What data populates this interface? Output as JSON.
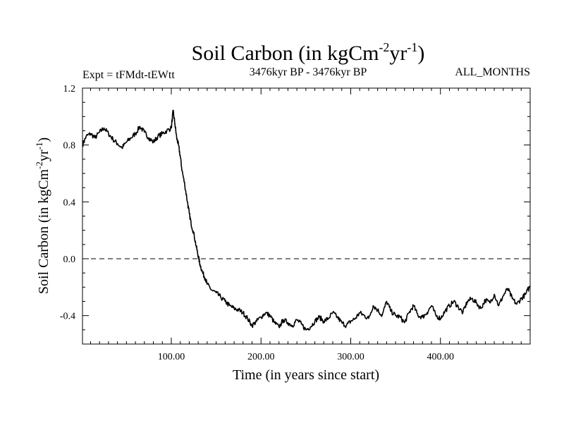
{
  "chart_data": {
    "type": "line",
    "title": {
      "main": "Soil Carbon (in kgCm",
      "sup1": "-2",
      "mid": "yr",
      "sup2": "-1",
      "end": ")"
    },
    "subtitle_left": "Expt = tFMdt-tEWtt",
    "subtitle_center": "3476kyr BP - 3476kyr BP",
    "subtitle_right": "ALL_MONTHS",
    "xlabel": "Time (in years since start)",
    "ylabel": {
      "main": "Soil Carbon (in kgCm",
      "sup1": "-2",
      "mid": "yr",
      "sup2": "-1",
      "end": ")"
    },
    "xlim": [
      1,
      500
    ],
    "ylim": [
      -0.6,
      1.2
    ],
    "x_ticks": [
      100,
      200,
      300,
      400
    ],
    "x_tick_labels": [
      "100.00",
      "200.00",
      "300.00",
      "400.00"
    ],
    "y_ticks": [
      -0.4,
      0.0,
      0.4,
      0.8,
      1.2
    ],
    "y_tick_labels": [
      "-0.4",
      "0.0",
      "0.4",
      "0.8",
      "1.2"
    ],
    "reference_line": {
      "y": 0.0,
      "style": "dashed"
    },
    "series": [
      {
        "name": "Soil Carbon",
        "x": [
          1,
          5,
          10,
          15,
          20,
          25,
          30,
          35,
          40,
          45,
          50,
          55,
          60,
          65,
          70,
          75,
          80,
          85,
          90,
          95,
          100,
          102,
          104,
          106,
          108,
          110,
          112,
          115,
          118,
          120,
          122,
          125,
          128,
          130,
          132,
          135,
          138,
          140,
          145,
          150,
          155,
          160,
          165,
          170,
          175,
          180,
          185,
          190,
          195,
          200,
          205,
          210,
          215,
          220,
          225,
          230,
          235,
          240,
          245,
          250,
          255,
          260,
          265,
          270,
          275,
          280,
          285,
          290,
          295,
          300,
          305,
          310,
          315,
          320,
          325,
          330,
          335,
          340,
          345,
          350,
          355,
          360,
          365,
          370,
          375,
          380,
          385,
          390,
          395,
          400,
          405,
          410,
          415,
          420,
          425,
          430,
          435,
          440,
          445,
          450,
          455,
          460,
          465,
          470,
          475,
          480,
          485,
          490,
          495,
          500
        ],
        "values": [
          0.8,
          0.86,
          0.88,
          0.85,
          0.89,
          0.92,
          0.88,
          0.84,
          0.81,
          0.78,
          0.82,
          0.85,
          0.88,
          0.93,
          0.89,
          0.85,
          0.82,
          0.86,
          0.88,
          0.9,
          0.92,
          1.04,
          0.95,
          0.85,
          0.8,
          0.72,
          0.62,
          0.52,
          0.4,
          0.32,
          0.25,
          0.18,
          0.08,
          0.02,
          -0.04,
          -0.1,
          -0.14,
          -0.18,
          -0.22,
          -0.24,
          -0.27,
          -0.3,
          -0.33,
          -0.35,
          -0.36,
          -0.38,
          -0.42,
          -0.47,
          -0.44,
          -0.41,
          -0.38,
          -0.4,
          -0.45,
          -0.48,
          -0.43,
          -0.45,
          -0.47,
          -0.43,
          -0.46,
          -0.5,
          -0.48,
          -0.44,
          -0.41,
          -0.44,
          -0.42,
          -0.38,
          -0.41,
          -0.45,
          -0.47,
          -0.44,
          -0.42,
          -0.38,
          -0.4,
          -0.42,
          -0.33,
          -0.36,
          -0.4,
          -0.3,
          -0.37,
          -0.4,
          -0.41,
          -0.45,
          -0.38,
          -0.33,
          -0.4,
          -0.41,
          -0.38,
          -0.33,
          -0.4,
          -0.42,
          -0.37,
          -0.33,
          -0.3,
          -0.34,
          -0.38,
          -0.3,
          -0.28,
          -0.31,
          -0.35,
          -0.29,
          -0.31,
          -0.25,
          -0.33,
          -0.26,
          -0.21,
          -0.28,
          -0.32,
          -0.28,
          -0.25,
          -0.19
        ]
      }
    ]
  }
}
